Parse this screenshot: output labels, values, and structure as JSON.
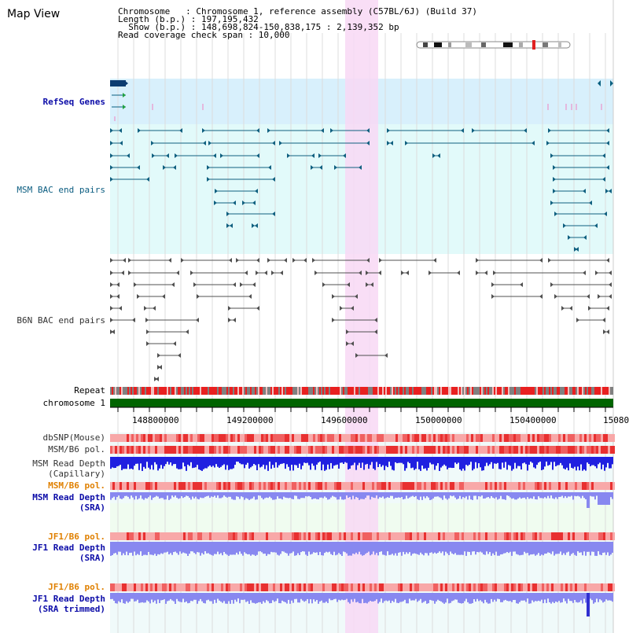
{
  "header": {
    "title": "Map View",
    "info_lines": [
      "Chromosome   : Chromosome 1, reference assembly (C57BL/6J) (Build 37)",
      "Length (b.p.) : 197,195,432",
      "  Show (b.p.) : 148,698,824-150,838,175 : 2,139,352 bp",
      "Read coverage check span : 10,000"
    ]
  },
  "tracks": {
    "refseq": "RefSeq Genes",
    "msm_bac": "MSM BAC end pairs",
    "b6n_bac": "B6N BAC end pairs",
    "repeat": "Repeat",
    "chromosome": "chromosome 1",
    "dbsnp": "dbSNP(Mouse)",
    "msm_b6_pol_1": "MSM/B6 pol.",
    "msm_depth_cap_1": "MSM Read Depth",
    "msm_depth_cap_2": "(Capillary)",
    "msm_b6_pol_2": "MSM/B6 pol.",
    "msm_depth_sra_1": "MSM Read Depth",
    "msm_depth_sra_2": "(SRA)",
    "jf1_b6_pol_1": "JF1/B6 pol.",
    "jf1_depth_sra_1": "JF1 Read Depth",
    "jf1_depth_sra_2": "(SRA)",
    "jf1_b6_pol_2": "JF1/B6 pol.",
    "jf1_depth_trim_1": "JF1 Read Depth",
    "jf1_depth_trim_2": "(SRA trimmed)"
  },
  "axis": {
    "ticks": [
      "148800000",
      "149200000",
      "149600000",
      "150000000",
      "150400000",
      "15080"
    ]
  },
  "colors": {
    "highlight": "#f8d8f4",
    "refseq_bg": "#d8f0fc",
    "track_bg": "#e2fafa",
    "chromosome": "#006400",
    "repeat_red": "#e82020",
    "repeat_gray": "#808080",
    "msm_feature": "#106080",
    "b6n_feature": "#505050",
    "depth_capillary": "#2020e0",
    "depth_sra": "#8888f0"
  }
}
